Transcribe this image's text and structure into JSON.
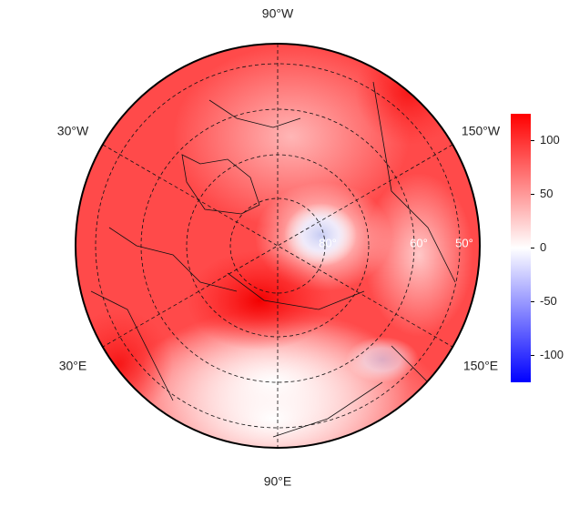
{
  "map": {
    "lon_labels": [
      "90°W",
      "30°W",
      "150°W",
      "30°E",
      "150°E",
      "90°E"
    ],
    "lat_labels": [
      "80°",
      "60°",
      "50°"
    ]
  },
  "colorbar": {
    "lim": [
      -125,
      125
    ],
    "ticks": [
      100,
      50,
      0,
      -50,
      -100
    ],
    "colors": [
      "#0000ff",
      "#ffffff",
      "#ff0000"
    ]
  }
}
